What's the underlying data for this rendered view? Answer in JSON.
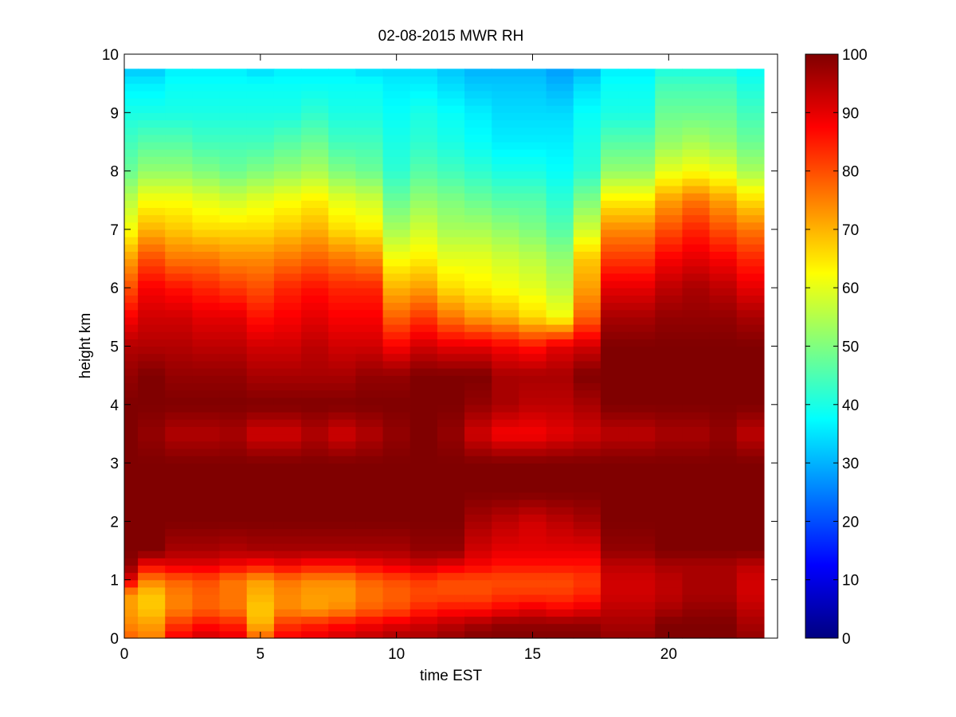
{
  "chart_data": {
    "type": "heatmap",
    "title": "02-08-2015 MWR RH",
    "xlabel": "time EST",
    "ylabel": "height km",
    "xlim": [
      0,
      24
    ],
    "ylim": [
      0,
      10
    ],
    "xticks": [
      0,
      5,
      10,
      15,
      20
    ],
    "yticks": [
      0,
      1,
      2,
      3,
      4,
      5,
      6,
      7,
      8,
      9,
      10
    ],
    "colorbar": {
      "colormap": "jet",
      "range": [
        0,
        100
      ],
      "ticks": [
        0,
        10,
        20,
        30,
        40,
        50,
        60,
        70,
        80,
        90,
        100
      ],
      "position": "right"
    },
    "grid": false,
    "x_columns_hours": [
      0,
      1,
      2,
      3,
      4,
      5,
      6,
      7,
      8,
      9,
      10,
      11,
      12,
      13,
      14,
      15,
      16,
      17,
      18,
      19,
      20,
      21,
      22,
      23
    ],
    "profile_heights_km": [
      0,
      0.25,
      0.5,
      0.75,
      1,
      1.25,
      1.5,
      2,
      2.5,
      3,
      3.5,
      4,
      4.5,
      5,
      5.5,
      6,
      6.5,
      7,
      7.5,
      8,
      8.5,
      9,
      9.5,
      9.75
    ],
    "rh_percent_by_hour": [
      [
        78,
        74,
        72,
        72,
        90,
        98,
        100,
        100,
        100,
        100,
        100,
        100,
        98,
        95,
        88,
        80,
        72,
        62,
        56,
        48,
        44,
        40,
        36,
        32
      ],
      [
        75,
        72,
        68,
        68,
        75,
        88,
        100,
        100,
        100,
        100,
        98,
        100,
        100,
        95,
        92,
        88,
        80,
        70,
        62,
        52,
        46,
        40,
        36,
        32
      ],
      [
        88,
        82,
        75,
        75,
        78,
        90,
        96,
        100,
        100,
        100,
        95,
        100,
        98,
        95,
        92,
        86,
        76,
        68,
        62,
        52,
        46,
        40,
        38,
        36
      ],
      [
        92,
        86,
        78,
        78,
        80,
        90,
        96,
        100,
        100,
        100,
        95,
        100,
        98,
        94,
        90,
        84,
        76,
        66,
        60,
        50,
        44,
        40,
        38,
        36
      ],
      [
        90,
        84,
        76,
        76,
        76,
        88,
        95,
        100,
        100,
        100,
        96,
        100,
        98,
        94,
        90,
        82,
        74,
        66,
        58,
        48,
        44,
        40,
        38,
        36
      ],
      [
        78,
        70,
        68,
        70,
        72,
        86,
        96,
        100,
        100,
        100,
        92,
        100,
        96,
        92,
        86,
        80,
        74,
        66,
        60,
        50,
        44,
        40,
        38,
        34
      ],
      [
        88,
        82,
        74,
        74,
        76,
        88,
        96,
        100,
        100,
        100,
        92,
        100,
        96,
        92,
        88,
        84,
        76,
        68,
        62,
        52,
        46,
        40,
        38,
        36
      ],
      [
        90,
        84,
        72,
        72,
        74,
        86,
        96,
        100,
        100,
        100,
        95,
        100,
        96,
        94,
        90,
        86,
        78,
        70,
        64,
        54,
        48,
        42,
        38,
        36
      ],
      [
        92,
        86,
        74,
        72,
        74,
        86,
        96,
        100,
        100,
        100,
        92,
        100,
        96,
        92,
        88,
        84,
        76,
        66,
        60,
        50,
        44,
        40,
        38,
        36
      ],
      [
        94,
        88,
        78,
        76,
        78,
        88,
        96,
        100,
        100,
        100,
        95,
        100,
        98,
        92,
        88,
        84,
        74,
        64,
        58,
        48,
        44,
        40,
        38,
        34
      ],
      [
        96,
        90,
        80,
        78,
        80,
        90,
        96,
        100,
        100,
        100,
        98,
        100,
        98,
        88,
        78,
        70,
        62,
        54,
        48,
        42,
        40,
        38,
        36,
        34
      ],
      [
        96,
        92,
        84,
        80,
        82,
        92,
        98,
        100,
        100,
        100,
        100,
        100,
        100,
        92,
        82,
        72,
        64,
        58,
        52,
        46,
        42,
        40,
        36,
        34
      ],
      [
        98,
        94,
        86,
        80,
        80,
        90,
        98,
        100,
        100,
        100,
        98,
        100,
        100,
        90,
        76,
        66,
        60,
        54,
        50,
        44,
        40,
        38,
        34,
        32
      ],
      [
        100,
        96,
        86,
        80,
        80,
        88,
        92,
        96,
        100,
        100,
        92,
        98,
        100,
        90,
        72,
        64,
        60,
        54,
        48,
        42,
        38,
        36,
        32,
        30
      ],
      [
        100,
        98,
        88,
        82,
        80,
        86,
        90,
        94,
        100,
        100,
        88,
        96,
        96,
        88,
        70,
        62,
        58,
        52,
        46,
        40,
        36,
        34,
        32,
        30
      ],
      [
        100,
        98,
        90,
        82,
        80,
        86,
        90,
        92,
        100,
        100,
        88,
        94,
        96,
        86,
        66,
        60,
        56,
        50,
        46,
        40,
        36,
        34,
        32,
        30
      ],
      [
        100,
        98,
        88,
        82,
        80,
        86,
        90,
        94,
        100,
        100,
        90,
        94,
        96,
        90,
        62,
        56,
        52,
        46,
        42,
        38,
        36,
        34,
        30,
        28
      ],
      [
        100,
        98,
        90,
        84,
        82,
        86,
        90,
        96,
        100,
        100,
        92,
        96,
        100,
        92,
        78,
        72,
        68,
        58,
        50,
        42,
        40,
        38,
        34,
        30
      ],
      [
        98,
        96,
        94,
        92,
        92,
        94,
        98,
        100,
        100,
        100,
        94,
        100,
        100,
        100,
        96,
        90,
        82,
        74,
        64,
        52,
        46,
        40,
        38,
        36
      ],
      [
        98,
        96,
        94,
        92,
        92,
        94,
        98,
        100,
        100,
        100,
        94,
        100,
        100,
        100,
        96,
        90,
        82,
        74,
        64,
        52,
        46,
        40,
        38,
        36
      ],
      [
        100,
        100,
        96,
        94,
        94,
        96,
        100,
        100,
        100,
        100,
        96,
        100,
        100,
        100,
        98,
        94,
        88,
        80,
        72,
        60,
        52,
        48,
        44,
        40
      ],
      [
        100,
        100,
        98,
        96,
        96,
        96,
        100,
        100,
        100,
        100,
        96,
        100,
        100,
        100,
        98,
        96,
        90,
        84,
        76,
        62,
        54,
        48,
        44,
        40
      ],
      [
        100,
        100,
        98,
        96,
        96,
        96,
        100,
        100,
        100,
        100,
        98,
        100,
        100,
        100,
        98,
        94,
        88,
        80,
        72,
        60,
        52,
        48,
        44,
        40
      ],
      [
        98,
        96,
        94,
        92,
        92,
        94,
        100,
        100,
        100,
        100,
        94,
        100,
        100,
        100,
        96,
        90,
        84,
        76,
        66,
        54,
        48,
        44,
        40,
        38
      ]
    ]
  }
}
